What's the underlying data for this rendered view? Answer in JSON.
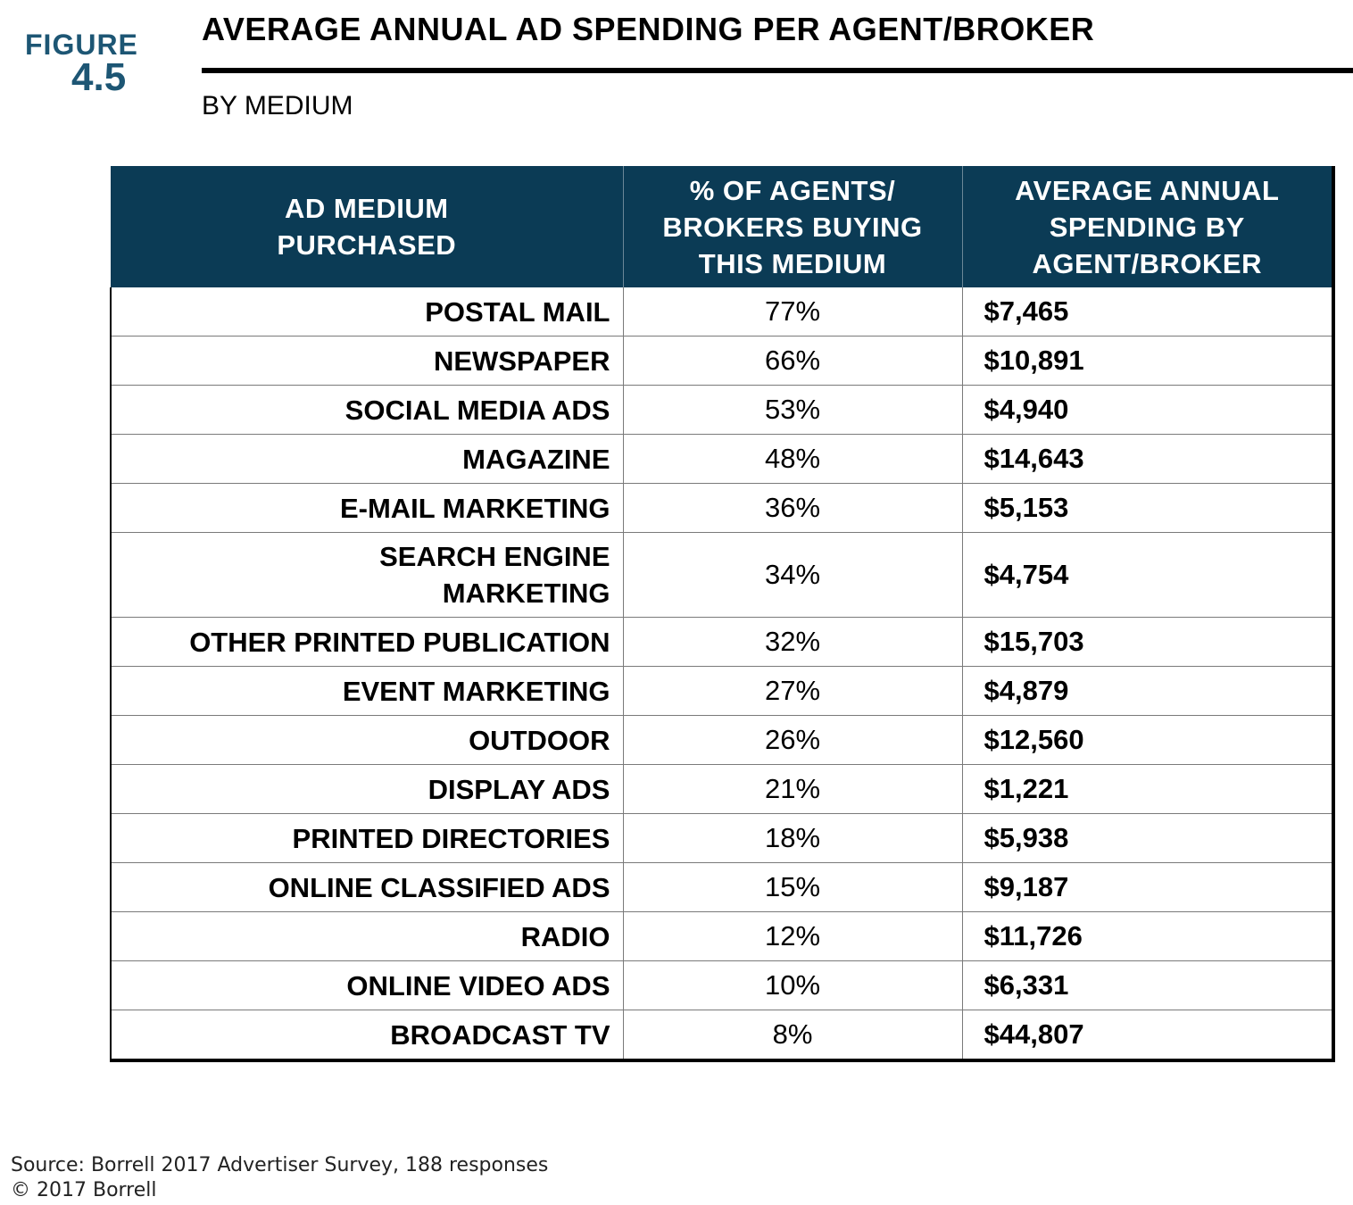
{
  "figure": {
    "word": "FIGURE",
    "number": "4.5"
  },
  "title": "AVERAGE ANNUAL AD SPENDING PER AGENT/BROKER",
  "subtitle": "BY MEDIUM",
  "colors": {
    "header_bg": "#0b3b55",
    "figure_label": "#1d5674"
  },
  "chart_data": {
    "type": "table",
    "title": "AVERAGE ANNUAL AD SPENDING PER AGENT/BROKER",
    "subtitle": "BY MEDIUM",
    "columns": [
      "AD MEDIUM PURCHASED",
      "% OF AGENTS/ BROKERS BUYING THIS MEDIUM",
      "AVERAGE ANNUAL SPENDING BY AGENT/BROKER"
    ],
    "rows": [
      {
        "medium": "POSTAL MAIL",
        "pct": "77%",
        "spend": "$7,465"
      },
      {
        "medium": "NEWSPAPER",
        "pct": "66%",
        "spend": "$10,891"
      },
      {
        "medium": "SOCIAL MEDIA ADS",
        "pct": "53%",
        "spend": "$4,940"
      },
      {
        "medium": "MAGAZINE",
        "pct": "48%",
        "spend": "$14,643"
      },
      {
        "medium": "E-MAIL MARKETING",
        "pct": "36%",
        "spend": "$5,153"
      },
      {
        "medium": "SEARCH ENGINE MARKETING",
        "pct": "34%",
        "spend": "$4,754"
      },
      {
        "medium": "OTHER PRINTED PUBLICATION",
        "pct": "32%",
        "spend": "$15,703"
      },
      {
        "medium": "EVENT MARKETING",
        "pct": "27%",
        "spend": "$4,879"
      },
      {
        "medium": "OUTDOOR",
        "pct": "26%",
        "spend": "$12,560"
      },
      {
        "medium": "DISPLAY ADS",
        "pct": "21%",
        "spend": "$1,221"
      },
      {
        "medium": "PRINTED DIRECTORIES",
        "pct": "18%",
        "spend": "$5,938"
      },
      {
        "medium": "ONLINE CLASSIFIED ADS",
        "pct": "15%",
        "spend": "$9,187"
      },
      {
        "medium": "RADIO",
        "pct": "12%",
        "spend": "$11,726"
      },
      {
        "medium": "ONLINE VIDEO ADS",
        "pct": "10%",
        "spend": "$6,331"
      },
      {
        "medium": "BROADCAST TV",
        "pct": "8%",
        "spend": "$44,807"
      }
    ]
  },
  "source": {
    "line1": "Source: Borrell 2017 Advertiser Survey, 188 responses",
    "line2": "© 2017 Borrell"
  }
}
